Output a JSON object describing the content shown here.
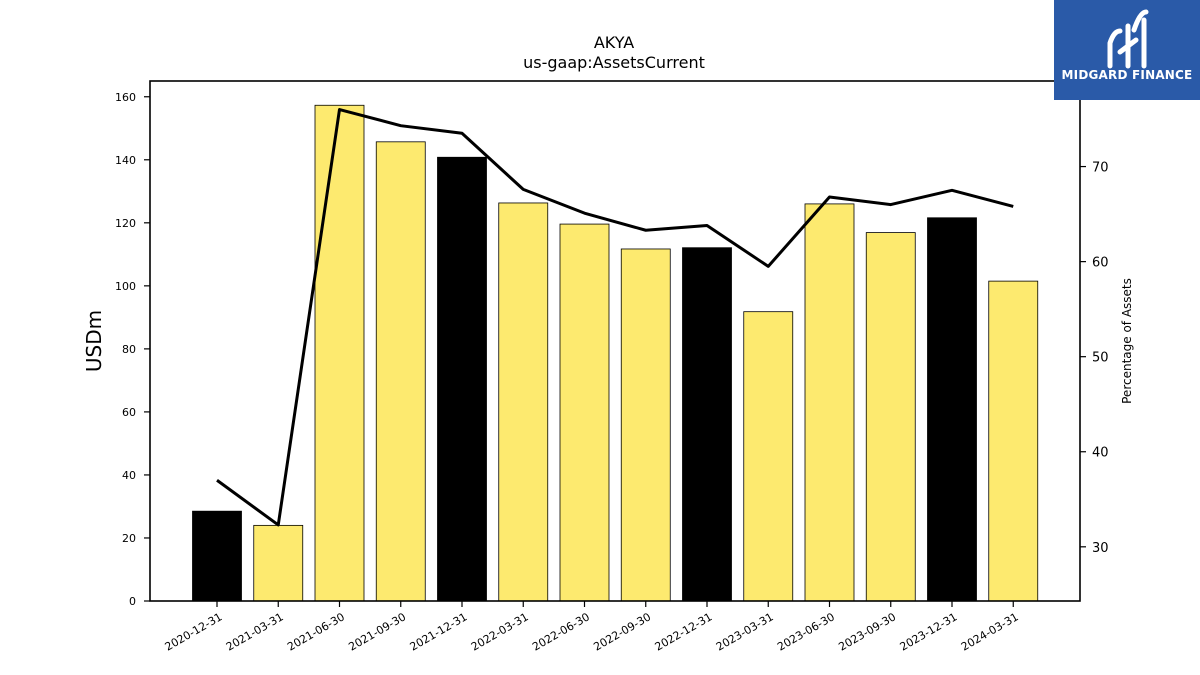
{
  "chart_data": {
    "type": "bar",
    "title": "AKYA",
    "subtitle": "us-gaap:AssetsCurrent",
    "ylabel": "USDm",
    "y2label": "Percentage of Assets",
    "ylim": [
      0,
      165
    ],
    "y2lim": [
      24.3,
      79
    ],
    "yticks": [
      0,
      20,
      40,
      60,
      80,
      100,
      120,
      140,
      160
    ],
    "y2ticks": [
      30,
      40,
      50,
      60,
      70
    ],
    "categories": [
      "2020-12-31",
      "2021-03-31",
      "2021-06-30",
      "2021-09-30",
      "2021-12-31",
      "2022-03-31",
      "2022-06-30",
      "2022-09-30",
      "2022-12-31",
      "2023-03-31",
      "2023-06-30",
      "2023-09-30",
      "2023-12-31",
      "2024-03-31"
    ],
    "series": [
      {
        "type": "bar",
        "axis": "left",
        "values": [
          28.5,
          24.0,
          157.3,
          145.7,
          140.8,
          126.3,
          119.6,
          111.7,
          112.1,
          91.8,
          126.0,
          116.9,
          121.6,
          101.5
        ],
        "colors": [
          "#000000",
          "#fdea6f",
          "#fdea6f",
          "#fdea6f",
          "#000000",
          "#fdea6f",
          "#fdea6f",
          "#fdea6f",
          "#000000",
          "#fdea6f",
          "#fdea6f",
          "#fdea6f",
          "#000000",
          "#fdea6f"
        ]
      },
      {
        "type": "line",
        "axis": "right",
        "color": "#000000",
        "values": [
          37.0,
          32.3,
          76.0,
          74.3,
          73.5,
          67.6,
          65.1,
          63.3,
          63.8,
          59.5,
          66.8,
          66.0,
          67.5,
          65.8
        ]
      }
    ]
  },
  "logo": {
    "text": "MIDGARD FINANCE",
    "background": "#2a5aa8"
  }
}
